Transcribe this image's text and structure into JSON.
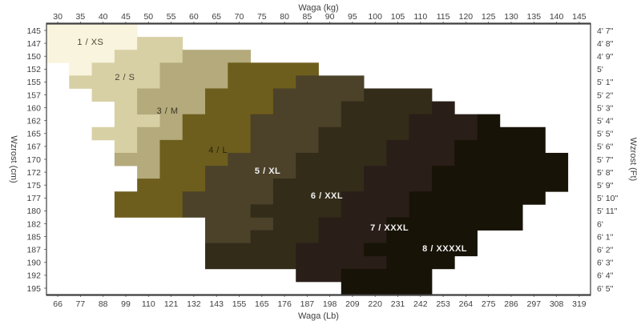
{
  "chart_data": {
    "type": "heatmap",
    "title": "",
    "note": "Tights size chart: stepped size regions over weight (x) and height (y). Grid of 24 weight columns x 21 height rows.",
    "grid": {
      "cols": 24,
      "rows": 21
    },
    "axes": {
      "top": {
        "title": "Waga  (kg)",
        "ticks": [
          "30",
          "35",
          "40",
          "45",
          "50",
          "55",
          "60",
          "65",
          "70",
          "75",
          "80",
          "85",
          "90",
          "95",
          "100",
          "105",
          "110",
          "115",
          "120",
          "125",
          "130",
          "135",
          "140",
          "145"
        ]
      },
      "bottom": {
        "title": "Waga  (Lb)",
        "ticks": [
          "66",
          "77",
          "88",
          "99",
          "110",
          "121",
          "132",
          "143",
          "155",
          "165",
          "176",
          "187",
          "198",
          "209",
          "220",
          "231",
          "242",
          "253",
          "264",
          "275",
          "286",
          "297",
          "308",
          "319"
        ]
      },
      "left": {
        "title": "Wzrost  (cm)",
        "ticks": [
          "145",
          "147",
          "150",
          "152",
          "155",
          "157",
          "160",
          "162",
          "165",
          "167",
          "170",
          "172",
          "175",
          "177",
          "180",
          "182",
          "185",
          "187",
          "190",
          "192",
          "195"
        ]
      },
      "right": {
        "title": "Wzrost  (Ft)",
        "ticks": [
          "4'  7\"",
          "4'  8\"",
          "4'  9\"",
          "5'",
          "5'  1\"",
          "5'  2\"",
          "5'  3\"",
          "5'  4\"",
          "5'  5\"",
          "5'  6\"",
          "5'  7\"",
          "5'  8\"",
          "5'  9\"",
          "5'  10\"",
          "5'  11\"",
          "6'",
          "6'  1\"",
          "6'  2\"",
          "6'  3\"",
          "6'  4\"",
          "6'  5\""
        ]
      }
    },
    "x_range_kg": [
      27.5,
      147.5
    ],
    "y_range_cm": [
      143.75,
      196.25
    ],
    "frame_color": "#3d3d3d",
    "tick_color": "#3f3f3f",
    "sizes": [
      {
        "number": "1",
        "name": "XS",
        "label": "1  /  XS",
        "color": "#f9f4de",
        "text_color": "#4a4635",
        "bold": false,
        "label_pos": {
          "col": 1.94,
          "row": 1.37
        },
        "spans": [
          [
            0,
            0,
            3
          ],
          [
            1,
            0,
            3
          ],
          [
            2,
            0,
            2
          ],
          [
            3,
            1,
            1
          ]
        ]
      },
      {
        "number": "2",
        "name": "S",
        "label": "2  /  S",
        "color": "#d8d0a5",
        "text_color": "#4a4635",
        "bold": false,
        "label_pos": {
          "col": 3.46,
          "row": 4.1
        },
        "spans": [
          [
            1,
            4,
            5
          ],
          [
            2,
            3,
            5
          ],
          [
            3,
            2,
            4
          ],
          [
            4,
            1,
            4
          ],
          [
            5,
            2,
            3
          ],
          [
            6,
            3,
            3
          ],
          [
            7,
            3,
            4
          ],
          [
            8,
            2,
            3
          ],
          [
            9,
            3,
            3
          ]
        ]
      },
      {
        "number": "3",
        "name": "M",
        "label": "3  /  M",
        "color": "#b4aa7c",
        "text_color": "#3a3624",
        "bold": false,
        "label_pos": {
          "col": 5.34,
          "row": 6.71
        },
        "spans": [
          [
            2,
            6,
            8
          ],
          [
            3,
            5,
            7
          ],
          [
            4,
            5,
            7
          ],
          [
            5,
            4,
            6
          ],
          [
            6,
            4,
            6
          ],
          [
            7,
            5,
            5
          ],
          [
            8,
            4,
            5
          ],
          [
            9,
            4,
            4
          ],
          [
            10,
            3,
            4
          ],
          [
            11,
            4,
            4
          ]
        ]
      },
      {
        "number": "4",
        "name": "L",
        "label": "4  /  L",
        "color": "#6e5e1d",
        "text_color": "#26220e",
        "bold": false,
        "label_pos": {
          "col": 7.57,
          "row": 9.75
        },
        "spans": [
          [
            3,
            8,
            11
          ],
          [
            4,
            8,
            10
          ],
          [
            5,
            7,
            9
          ],
          [
            6,
            7,
            9
          ],
          [
            7,
            6,
            8
          ],
          [
            8,
            6,
            8
          ],
          [
            9,
            5,
            8
          ],
          [
            10,
            5,
            7
          ],
          [
            11,
            5,
            6
          ],
          [
            12,
            4,
            6
          ],
          [
            13,
            3,
            5
          ],
          [
            14,
            3,
            5
          ]
        ]
      },
      {
        "number": "5",
        "name": "XL",
        "label": "5  /  XL",
        "color": "#4c422a",
        "text_color": "#f2f2f2",
        "bold": true,
        "label_pos": {
          "col": 9.76,
          "row": 11.37
        },
        "spans": [
          [
            4,
            11,
            13
          ],
          [
            5,
            10,
            13
          ],
          [
            6,
            10,
            12
          ],
          [
            7,
            9,
            12
          ],
          [
            8,
            9,
            11
          ],
          [
            9,
            9,
            11
          ],
          [
            10,
            8,
            10
          ],
          [
            11,
            7,
            10
          ],
          [
            12,
            7,
            9
          ],
          [
            13,
            6,
            9
          ],
          [
            14,
            6,
            8
          ],
          [
            15,
            7,
            9
          ],
          [
            16,
            7,
            8
          ]
        ]
      },
      {
        "number": "6",
        "name": "XXL",
        "label": "6  /  XXL",
        "color": "#332c19",
        "text_color": "#f2f2f2",
        "bold": true,
        "label_pos": {
          "col": 12.37,
          "row": 13.29
        },
        "spans": [
          [
            5,
            14,
            16
          ],
          [
            6,
            13,
            16
          ],
          [
            7,
            13,
            15
          ],
          [
            8,
            12,
            15
          ],
          [
            9,
            12,
            14
          ],
          [
            10,
            11,
            14
          ],
          [
            11,
            11,
            13
          ],
          [
            12,
            10,
            13
          ],
          [
            13,
            10,
            12
          ],
          [
            14,
            9,
            12
          ],
          [
            15,
            10,
            11
          ],
          [
            16,
            9,
            11
          ],
          [
            17,
            7,
            10
          ],
          [
            18,
            7,
            10
          ]
        ]
      },
      {
        "number": "7",
        "name": "XXXL",
        "label": "7  /  XXXL",
        "color": "#2a1e19",
        "text_color": "#f2f2f2",
        "bold": true,
        "label_pos": {
          "col": 15.13,
          "row": 15.78
        },
        "spans": [
          [
            6,
            17,
            17
          ],
          [
            7,
            16,
            18
          ],
          [
            8,
            16,
            18
          ],
          [
            9,
            15,
            17
          ],
          [
            10,
            15,
            17
          ],
          [
            11,
            14,
            16
          ],
          [
            12,
            14,
            16
          ],
          [
            13,
            13,
            15
          ],
          [
            14,
            13,
            15
          ],
          [
            15,
            12,
            14
          ],
          [
            16,
            12,
            14
          ],
          [
            17,
            11,
            13
          ],
          [
            18,
            11,
            14
          ],
          [
            19,
            11,
            12
          ]
        ]
      },
      {
        "number": "8",
        "name": "XXXXL",
        "label": "8  /  XXXXL",
        "color": "#171307",
        "text_color": "#f2f2f2",
        "bold": true,
        "label_pos": {
          "col": 17.57,
          "row": 17.39
        },
        "spans": [
          [
            7,
            19,
            19
          ],
          [
            8,
            19,
            21
          ],
          [
            9,
            18,
            21
          ],
          [
            10,
            18,
            22
          ],
          [
            11,
            17,
            22
          ],
          [
            12,
            17,
            22
          ],
          [
            13,
            16,
            21
          ],
          [
            14,
            16,
            20
          ],
          [
            15,
            15,
            20
          ],
          [
            16,
            15,
            18
          ],
          [
            17,
            14,
            18
          ],
          [
            18,
            15,
            17
          ],
          [
            19,
            13,
            16
          ],
          [
            20,
            13,
            16
          ]
        ]
      }
    ]
  }
}
